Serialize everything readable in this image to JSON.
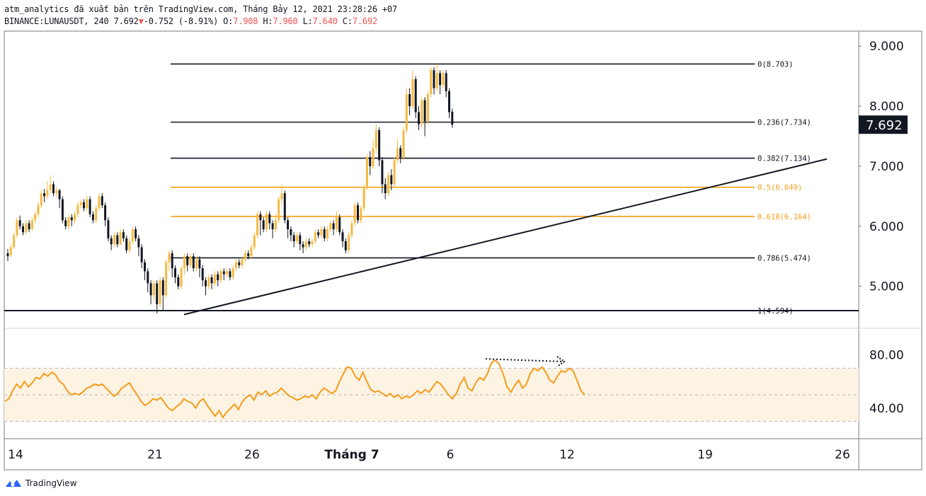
{
  "header": {
    "line1": "atm_analytics đã xuất bản trên TradingView.com, Tháng Bảy 12, 2021 23:28:26 +07",
    "symbol": "BINANCE:LUNAUSDT, 240",
    "last": "7.692",
    "down_arrow": "▼",
    "change": "-0.752 (-8.91%)",
    "o_label": "O:",
    "o_value": "7.908",
    "h_label": "H:",
    "h_value": "7.960",
    "l_label": "L:",
    "l_value": "7.640",
    "c_label": "C:",
    "c_value": "7.692"
  },
  "footer": {
    "brand": "TradingView",
    "icon": "tradingview-logo-icon"
  },
  "colors": {
    "up_candle": "#f5b942",
    "down_candle": "#131722",
    "fib_black": "#131722",
    "fib_orange": "#f5a01a",
    "rsi_line": "#f59c1a",
    "rsi_band": "#fdf3e3",
    "price_tag_bg": "#131722",
    "price_tag_fg": "#ffffff"
  },
  "chart_data": {
    "type": "candlestick",
    "symbol": "BINANCE:LUNAUSDT",
    "timeframe": "240",
    "x_labels": [
      "14",
      "21",
      "26",
      "Tháng 7",
      "6",
      "12",
      "19",
      "26"
    ],
    "price_axis": {
      "ticks": [
        "9.000",
        "8.000",
        "7.000",
        "6.000",
        "5.000"
      ],
      "ylim": [
        4.3,
        9.25
      ]
    },
    "last_price_label": "7.692",
    "fibonacci": [
      {
        "label": "0(8.703)",
        "value": 8.703,
        "color": "#131722"
      },
      {
        "label": "0.236(7.734)",
        "value": 7.734,
        "color": "#131722"
      },
      {
        "label": "0.382(7.134)",
        "value": 7.134,
        "color": "#131722"
      },
      {
        "label": "0.5(6.649)",
        "value": 6.649,
        "color": "#f5a01a"
      },
      {
        "label": "0.618(6.164)",
        "value": 6.164,
        "color": "#f5a01a"
      },
      {
        "label": "0.786(5.474)",
        "value": 5.474,
        "color": "#131722"
      },
      {
        "label": "1(4.594)",
        "value": 4.594,
        "color": "#131722"
      }
    ],
    "support_line_value": 4.594,
    "trendline": {
      "from": [
        0.1,
        4.53
      ],
      "to": [
        1.0,
        7.12
      ]
    },
    "candles": [
      [
        5.55,
        5.5,
        5.62,
        5.42
      ],
      [
        5.52,
        5.65,
        5.7,
        5.48
      ],
      [
        5.65,
        5.85,
        5.9,
        5.62
      ],
      [
        5.85,
        6.1,
        6.15,
        5.8
      ],
      [
        6.1,
        6.0,
        6.18,
        5.95
      ],
      [
        6.0,
        5.9,
        6.05,
        5.85
      ],
      [
        5.9,
        6.05,
        6.1,
        5.86
      ],
      [
        6.05,
        5.95,
        6.1,
        5.9
      ],
      [
        5.95,
        6.1,
        6.15,
        5.92
      ],
      [
        6.1,
        6.2,
        6.25,
        6.05
      ],
      [
        6.2,
        6.35,
        6.4,
        6.15
      ],
      [
        6.35,
        6.55,
        6.6,
        6.3
      ],
      [
        6.55,
        6.5,
        6.62,
        6.4
      ],
      [
        6.5,
        6.6,
        6.75,
        6.45
      ],
      [
        6.6,
        6.7,
        6.85,
        6.55
      ],
      [
        6.7,
        6.55,
        6.75,
        6.5
      ],
      [
        6.55,
        6.6,
        6.65,
        6.48
      ],
      [
        6.6,
        6.45,
        6.62,
        6.3
      ],
      [
        6.45,
        6.1,
        6.5,
        6.05
      ],
      [
        6.1,
        6.0,
        6.15,
        5.95
      ],
      [
        6.0,
        6.15,
        6.2,
        5.95
      ],
      [
        6.15,
        6.1,
        6.2,
        6.0
      ],
      [
        6.1,
        6.2,
        6.25,
        6.05
      ],
      [
        6.2,
        6.35,
        6.4,
        6.15
      ],
      [
        6.35,
        6.4,
        6.45,
        6.3
      ],
      [
        6.4,
        6.3,
        6.45,
        6.25
      ],
      [
        6.3,
        6.45,
        6.5,
        6.25
      ],
      [
        6.45,
        6.2,
        6.5,
        6.15
      ],
      [
        6.2,
        6.1,
        6.25,
        6.05
      ],
      [
        6.1,
        6.3,
        6.35,
        6.05
      ],
      [
        6.3,
        6.5,
        6.55,
        6.25
      ],
      [
        6.5,
        6.35,
        6.55,
        6.3
      ],
      [
        6.35,
        6.1,
        6.4,
        6.0
      ],
      [
        6.1,
        5.8,
        6.15,
        5.75
      ],
      [
        5.8,
        5.7,
        5.85,
        5.6
      ],
      [
        5.7,
        5.85,
        5.9,
        5.65
      ],
      [
        5.85,
        5.7,
        5.9,
        5.65
      ],
      [
        5.7,
        5.9,
        5.95,
        5.68
      ],
      [
        5.9,
        5.8,
        5.95,
        5.75
      ],
      [
        5.8,
        5.6,
        5.85,
        5.55
      ],
      [
        5.6,
        5.75,
        5.8,
        5.55
      ],
      [
        5.75,
        5.95,
        6.0,
        5.7
      ],
      [
        5.95,
        5.8,
        6.0,
        5.75
      ],
      [
        5.8,
        5.65,
        5.85,
        5.5
      ],
      [
        5.65,
        5.4,
        5.7,
        5.3
      ],
      [
        5.4,
        5.25,
        5.45,
        5.1
      ],
      [
        5.25,
        5.05,
        5.3,
        4.9
      ],
      [
        5.05,
        4.85,
        5.1,
        4.7
      ],
      [
        4.85,
        5.05,
        5.1,
        4.75
      ],
      [
        5.05,
        4.7,
        5.1,
        4.55
      ],
      [
        4.7,
        5.1,
        5.15,
        4.65
      ],
      [
        5.1,
        4.85,
        5.15,
        4.6
      ],
      [
        4.85,
        5.4,
        5.45,
        4.8
      ],
      [
        5.4,
        5.55,
        5.6,
        5.25
      ],
      [
        5.55,
        5.3,
        5.6,
        5.15
      ],
      [
        5.3,
        5.15,
        5.35,
        5.05
      ],
      [
        5.15,
        5.0,
        5.2,
        4.95
      ],
      [
        5.0,
        5.3,
        5.35,
        4.95
      ],
      [
        5.3,
        5.5,
        5.55,
        5.2
      ],
      [
        5.5,
        5.35,
        5.55,
        5.25
      ],
      [
        5.35,
        5.5,
        5.55,
        5.3
      ],
      [
        5.5,
        5.3,
        5.55,
        5.25
      ],
      [
        5.3,
        5.45,
        5.5,
        5.25
      ],
      [
        5.45,
        5.3,
        5.5,
        5.15
      ],
      [
        5.3,
        5.1,
        5.35,
        5.0
      ],
      [
        5.1,
        5.0,
        5.15,
        4.85
      ],
      [
        5.0,
        5.15,
        5.2,
        4.95
      ],
      [
        5.15,
        5.05,
        5.2,
        4.95
      ],
      [
        5.05,
        5.2,
        5.25,
        5.0
      ],
      [
        5.2,
        5.1,
        5.25,
        5.0
      ],
      [
        5.1,
        5.25,
        5.3,
        5.05
      ],
      [
        5.25,
        5.2,
        5.3,
        5.1
      ],
      [
        5.2,
        5.25,
        5.3,
        5.15
      ],
      [
        5.25,
        5.15,
        5.3,
        5.1
      ],
      [
        5.15,
        5.3,
        5.35,
        5.1
      ],
      [
        5.3,
        5.4,
        5.45,
        5.25
      ],
      [
        5.4,
        5.35,
        5.45,
        5.3
      ],
      [
        5.35,
        5.45,
        5.5,
        5.3
      ],
      [
        5.45,
        5.55,
        5.6,
        5.4
      ],
      [
        5.55,
        5.5,
        5.6,
        5.45
      ],
      [
        5.5,
        5.65,
        5.7,
        5.45
      ],
      [
        5.65,
        5.85,
        5.9,
        5.6
      ],
      [
        5.85,
        6.2,
        6.25,
        5.8
      ],
      [
        6.2,
        6.1,
        6.25,
        5.85
      ],
      [
        6.1,
        5.95,
        6.15,
        5.9
      ],
      [
        5.95,
        6.2,
        6.25,
        5.9
      ],
      [
        6.2,
        6.05,
        6.25,
        5.95
      ],
      [
        6.05,
        5.95,
        6.1,
        5.8
      ],
      [
        5.95,
        6.1,
        6.2,
        5.9
      ],
      [
        6.1,
        6.45,
        6.5,
        6.05
      ],
      [
        6.45,
        6.55,
        6.7,
        6.35
      ],
      [
        6.55,
        6.1,
        6.6,
        6.05
      ],
      [
        6.1,
        5.95,
        6.15,
        5.8
      ],
      [
        5.95,
        5.85,
        6.0,
        5.75
      ],
      [
        5.85,
        5.75,
        5.9,
        5.65
      ],
      [
        5.75,
        5.85,
        5.9,
        5.7
      ],
      [
        5.85,
        5.7,
        5.9,
        5.6
      ],
      [
        5.7,
        5.65,
        5.75,
        5.55
      ],
      [
        5.65,
        5.75,
        5.8,
        5.6
      ],
      [
        5.75,
        5.7,
        5.8,
        5.65
      ],
      [
        5.7,
        5.75,
        5.8,
        5.65
      ],
      [
        5.75,
        5.9,
        5.95,
        5.7
      ],
      [
        5.9,
        5.85,
        5.95,
        5.8
      ],
      [
        5.85,
        5.95,
        6.0,
        5.8
      ],
      [
        5.95,
        5.8,
        6.0,
        5.75
      ],
      [
        5.8,
        5.95,
        6.0,
        5.75
      ],
      [
        5.95,
        6.05,
        6.1,
        5.9
      ],
      [
        6.05,
        5.95,
        6.1,
        5.85
      ],
      [
        5.95,
        6.15,
        6.25,
        5.9
      ],
      [
        6.15,
        5.9,
        6.2,
        5.85
      ],
      [
        5.9,
        5.75,
        5.95,
        5.65
      ],
      [
        5.75,
        5.6,
        5.8,
        5.55
      ],
      [
        5.6,
        5.85,
        5.9,
        5.55
      ],
      [
        5.85,
        6.05,
        6.1,
        5.8
      ],
      [
        6.05,
        6.35,
        6.4,
        6.0
      ],
      [
        6.35,
        6.1,
        6.4,
        6.05
      ],
      [
        6.1,
        6.3,
        6.35,
        6.05
      ],
      [
        6.3,
        6.65,
        6.7,
        6.25
      ],
      [
        6.65,
        7.15,
        7.2,
        6.6
      ],
      [
        7.15,
        7.0,
        7.25,
        6.85
      ],
      [
        7.0,
        7.3,
        7.45,
        6.95
      ],
      [
        7.3,
        7.6,
        7.7,
        7.2
      ],
      [
        7.6,
        7.1,
        7.65,
        7.0
      ],
      [
        7.1,
        6.7,
        7.15,
        6.55
      ],
      [
        6.7,
        6.55,
        6.8,
        6.45
      ],
      [
        6.55,
        6.85,
        6.9,
        6.5
      ],
      [
        6.85,
        6.7,
        6.95,
        6.6
      ],
      [
        6.7,
        7.1,
        7.15,
        6.65
      ],
      [
        7.1,
        7.3,
        7.45,
        7.05
      ],
      [
        7.3,
        7.15,
        7.35,
        7.05
      ],
      [
        7.15,
        7.6,
        7.65,
        7.1
      ],
      [
        7.6,
        8.2,
        8.3,
        7.55
      ],
      [
        8.2,
        8.0,
        8.3,
        7.85
      ],
      [
        8.0,
        8.45,
        8.6,
        7.95
      ],
      [
        8.45,
        7.9,
        8.5,
        7.8
      ],
      [
        7.9,
        7.7,
        8.0,
        7.6
      ],
      [
        7.7,
        8.1,
        8.15,
        7.65
      ],
      [
        8.1,
        7.75,
        8.15,
        7.5
      ],
      [
        7.75,
        8.2,
        8.25,
        7.7
      ],
      [
        8.2,
        8.6,
        8.65,
        8.15
      ],
      [
        8.6,
        8.3,
        8.65,
        8.2
      ],
      [
        8.3,
        8.55,
        8.703,
        8.25
      ],
      [
        8.55,
        8.35,
        8.6,
        8.2
      ],
      [
        8.35,
        8.55,
        8.6,
        8.3
      ],
      [
        8.55,
        8.25,
        8.6,
        8.15
      ],
      [
        8.25,
        7.9,
        8.3,
        7.8
      ],
      [
        7.908,
        7.692,
        7.96,
        7.64
      ]
    ],
    "rsi": {
      "ticks": [
        "80.00",
        "40.00"
      ],
      "ylim": [
        17,
        100
      ],
      "band": [
        70,
        30
      ],
      "midline": 50,
      "values": [
        45,
        47,
        53,
        58,
        55,
        60,
        56,
        59,
        63,
        62,
        66,
        64,
        67,
        65,
        60,
        58,
        53,
        50,
        51,
        50,
        52,
        55,
        56,
        58,
        57,
        58,
        55,
        52,
        49,
        51,
        55,
        57,
        59,
        54,
        50,
        45,
        42,
        44,
        47,
        46,
        48,
        44,
        40,
        38,
        41,
        43,
        47,
        45,
        44,
        40,
        45,
        47,
        42,
        38,
        34,
        38,
        33,
        37,
        40,
        43,
        39,
        45,
        48,
        50,
        46,
        52,
        50,
        53,
        49,
        51,
        52,
        55,
        52,
        49,
        48,
        46,
        47,
        49,
        48,
        50,
        47,
        52,
        55,
        53,
        51,
        53,
        60,
        66,
        71,
        70,
        64,
        61,
        67,
        60,
        54,
        52,
        53,
        51,
        49,
        51,
        48,
        50,
        47,
        49,
        48,
        50,
        53,
        51,
        54,
        52,
        56,
        60,
        58,
        54,
        50,
        47,
        51,
        58,
        63,
        55,
        53,
        59,
        63,
        61,
        66,
        74,
        76,
        73,
        66,
        56,
        52,
        57,
        61,
        55,
        58,
        66,
        70,
        68,
        71,
        67,
        61,
        59,
        64,
        68,
        67,
        70,
        68,
        61,
        53,
        50
      ],
      "arrow": {
        "from": [
          0.88,
          77
        ],
        "to": [
          1.0,
          75
        ]
      }
    }
  }
}
